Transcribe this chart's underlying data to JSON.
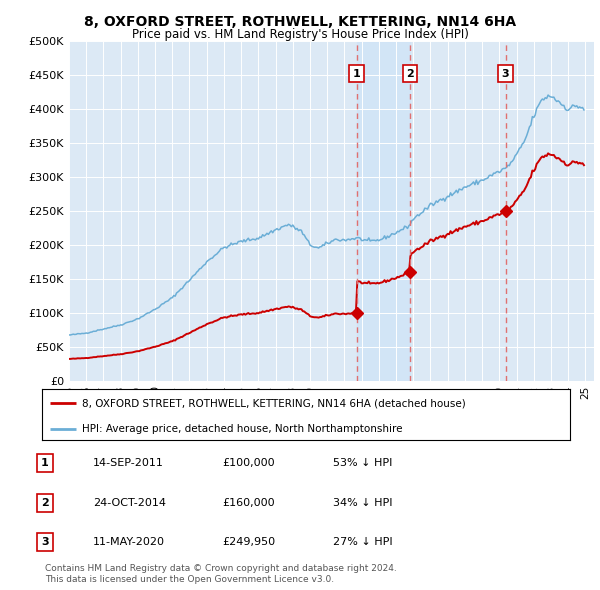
{
  "title": "8, OXFORD STREET, ROTHWELL, KETTERING, NN14 6HA",
  "subtitle": "Price paid vs. HM Land Registry's House Price Index (HPI)",
  "hpi_label": "HPI: Average price, detached house, North Northamptonshire",
  "property_label": "8, OXFORD STREET, ROTHWELL, KETTERING, NN14 6HA (detached house)",
  "plot_bg_color": "#dce9f5",
  "hpi_color": "#6baed6",
  "property_color": "#cc0000",
  "dashed_line_color": "#e07070",
  "shade_color": "#d0e4f7",
  "transactions": [
    {
      "date": "2011-09-14",
      "price": 100000,
      "label": "1",
      "pct": "53% ↓ HPI",
      "display_date": "14-SEP-2011"
    },
    {
      "date": "2014-10-24",
      "price": 160000,
      "label": "2",
      "pct": "34% ↓ HPI",
      "display_date": "24-OCT-2014"
    },
    {
      "date": "2020-05-11",
      "price": 249950,
      "label": "3",
      "pct": "27% ↓ HPI",
      "display_date": "11-MAY-2020"
    }
  ],
  "ylim": [
    0,
    500000
  ],
  "yticks": [
    0,
    50000,
    100000,
    150000,
    200000,
    250000,
    300000,
    350000,
    400000,
    450000,
    500000
  ],
  "ytick_labels": [
    "£0",
    "£50K",
    "£100K",
    "£150K",
    "£200K",
    "£250K",
    "£300K",
    "£350K",
    "£400K",
    "£450K",
    "£500K"
  ],
  "xlim_start": 1995.0,
  "xlim_end": 2025.5,
  "footer_line1": "Contains HM Land Registry data © Crown copyright and database right 2024.",
  "footer_line2": "This data is licensed under the Open Government Licence v3.0."
}
